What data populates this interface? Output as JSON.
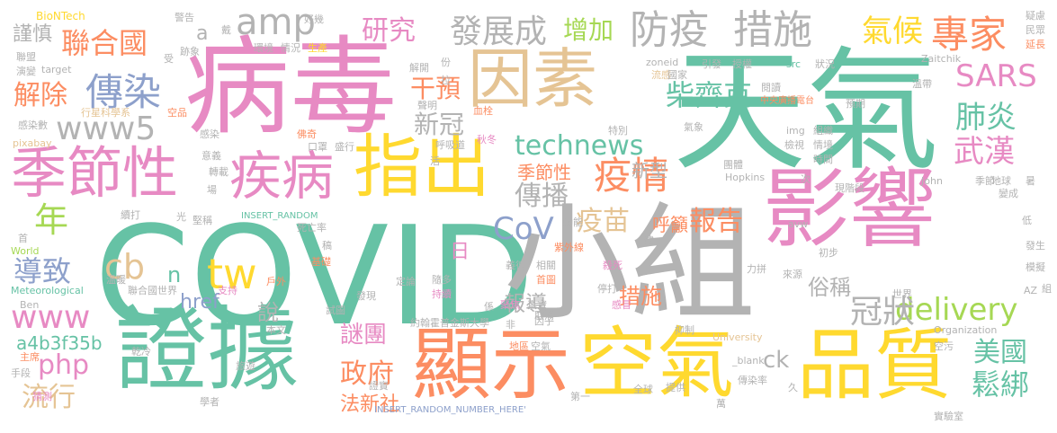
{
  "palette": {
    "green": "#66c2a5",
    "orange": "#fc8d62",
    "blue": "#8da0cb",
    "pink": "#e78ac3",
    "lime": "#a6d854",
    "yellow": "#ffd92f",
    "tan": "#e5c494",
    "gray": "#b3b3b3"
  },
  "words": [
    {
      "text": "COVID",
      "color": "green"
    },
    {
      "text": "天氣",
      "color": "green"
    },
    {
      "text": "病毒",
      "color": "pink"
    },
    {
      "text": "小組",
      "color": "gray"
    },
    {
      "text": "影響",
      "color": "pink"
    },
    {
      "text": "證據",
      "color": "green"
    },
    {
      "text": "顯示",
      "color": "orange"
    },
    {
      "text": "空氣",
      "color": "yellow"
    },
    {
      "text": "品質",
      "color": "yellow"
    },
    {
      "text": "因素",
      "color": "tan"
    },
    {
      "text": "指出",
      "color": "yellow"
    },
    {
      "text": "季節性",
      "color": "pink"
    },
    {
      "text": "疾病",
      "color": "pink"
    },
    {
      "text": "防疫",
      "color": "gray"
    },
    {
      "text": "措施",
      "color": "gray"
    },
    {
      "text": "專家",
      "color": "orange"
    },
    {
      "text": "發展成",
      "color": "gray"
    },
    {
      "text": "疫情",
      "color": "orange"
    },
    {
      "text": "www5",
      "color": "gray"
    },
    {
      "text": "傳染",
      "color": "blue"
    },
    {
      "text": "technews",
      "color": "green"
    },
    {
      "text": "聯合國",
      "color": "orange"
    },
    {
      "text": "研究",
      "color": "pink"
    },
    {
      "text": "amp",
      "color": "gray"
    },
    {
      "text": "氣候",
      "color": "yellow"
    },
    {
      "text": "SARS",
      "color": "pink"
    },
    {
      "text": "肺炎",
      "color": "green"
    },
    {
      "text": "武漢",
      "color": "pink"
    },
    {
      "text": "柴齊克",
      "color": "green"
    },
    {
      "text": "干預",
      "color": "orange"
    },
    {
      "text": "解除",
      "color": "orange"
    },
    {
      "text": "增加",
      "color": "lime"
    },
    {
      "text": "新冠",
      "color": "gray"
    },
    {
      "text": "傳播",
      "color": "gray"
    },
    {
      "text": "報告",
      "color": "orange"
    },
    {
      "text": "季節性",
      "color": "orange"
    },
    {
      "text": "CoV",
      "color": "blue"
    },
    {
      "text": "tw",
      "color": "yellow"
    },
    {
      "text": "cb",
      "color": "tan"
    },
    {
      "text": "年",
      "color": "lime"
    },
    {
      "text": "導致",
      "color": "blue"
    },
    {
      "text": "www",
      "color": "pink"
    },
    {
      "text": "php",
      "color": "pink"
    },
    {
      "text": "流行",
      "color": "tan"
    },
    {
      "text": "delivery",
      "color": "lime"
    },
    {
      "text": "冠狀",
      "color": "gray"
    },
    {
      "text": "美國",
      "color": "green"
    },
    {
      "text": "鬆綁",
      "color": "green"
    },
    {
      "text": "政府",
      "color": "orange"
    },
    {
      "text": "謎團",
      "color": "pink"
    },
    {
      "text": "a4b3f35b",
      "color": "green"
    },
    {
      "text": "疫苗",
      "color": "tan"
    },
    {
      "text": "報導",
      "color": "gray"
    },
    {
      "text": "措施",
      "color": "orange"
    },
    {
      "text": "俗稱",
      "color": "gray"
    },
    {
      "text": "法新社",
      "color": "orange"
    },
    {
      "text": "ck",
      "color": "gray"
    },
    {
      "text": "href",
      "color": "blue"
    },
    {
      "text": "n",
      "color": "green"
    },
    {
      "text": "說",
      "color": "gray"
    },
    {
      "text": "日",
      "color": "pink"
    },
    {
      "text": "新型",
      "color": "gray"
    },
    {
      "text": "呼籲",
      "color": "orange"
    },
    {
      "text": "謹慎",
      "color": "gray"
    },
    {
      "text": "a",
      "color": "gray"
    },
    {
      "text": "BioNTech",
      "color": "yellow"
    },
    {
      "text": "警告",
      "color": "gray"
    },
    {
      "text": "好幾",
      "color": "gray"
    },
    {
      "text": "疑慮",
      "color": "gray"
    },
    {
      "text": "民眾",
      "color": "gray"
    },
    {
      "text": "延長",
      "color": "orange"
    },
    {
      "text": "聯盟",
      "color": "gray"
    },
    {
      "text": "跡象",
      "color": "gray"
    },
    {
      "text": "環境",
      "color": "gray"
    },
    {
      "text": "情況",
      "color": "gray"
    },
    {
      "text": "生產",
      "color": "yellow"
    },
    {
      "text": "演變",
      "color": "gray"
    },
    {
      "text": "target",
      "color": "gray"
    },
    {
      "text": "解開",
      "color": "gray"
    },
    {
      "text": "份",
      "color": "gray"
    },
    {
      "text": "拉",
      "color": "gray"
    },
    {
      "text": "zoneid",
      "color": "gray"
    },
    {
      "text": "引發",
      "color": "gray"
    },
    {
      "text": "授權",
      "color": "gray"
    },
    {
      "text": "src",
      "color": "green"
    },
    {
      "text": "狀況",
      "color": "gray"
    },
    {
      "text": "Zaitchik",
      "color": "gray"
    },
    {
      "text": "溫帶",
      "color": "gray"
    },
    {
      "text": "行星科學系",
      "color": "tan"
    },
    {
      "text": "空品",
      "color": "orange"
    },
    {
      "text": "聲明",
      "color": "gray"
    },
    {
      "text": "血栓",
      "color": "orange"
    },
    {
      "text": "流感",
      "color": "tan"
    },
    {
      "text": "國家",
      "color": "gray"
    },
    {
      "text": "閱讀",
      "color": "gray"
    },
    {
      "text": "中央廣播電台",
      "color": "orange"
    },
    {
      "text": "預期",
      "color": "gray"
    },
    {
      "text": "感染數",
      "color": "gray"
    },
    {
      "text": "感染",
      "color": "gray"
    },
    {
      "text": "佛奇",
      "color": "orange"
    },
    {
      "text": "口罩",
      "color": "gray"
    },
    {
      "text": "盛行",
      "color": "gray"
    },
    {
      "text": "呼吸道",
      "color": "gray"
    },
    {
      "text": "秋冬",
      "color": "pink"
    },
    {
      "text": "特別",
      "color": "gray"
    },
    {
      "text": "氣象",
      "color": "gray"
    },
    {
      "text": "img",
      "color": "gray"
    },
    {
      "text": "組織",
      "color": "gray"
    },
    {
      "text": "檢視",
      "color": "gray"
    },
    {
      "text": "情境",
      "color": "gray"
    },
    {
      "text": "時間",
      "color": "gray"
    },
    {
      "text": "pixabay",
      "color": "tan"
    },
    {
      "text": "意義",
      "color": "gray"
    },
    {
      "text": "轉載",
      "color": "gray"
    },
    {
      "text": "活",
      "color": "gray"
    },
    {
      "text": "團體",
      "color": "gray"
    },
    {
      "text": "Hopkins",
      "color": "gray"
    },
    {
      "text": "次",
      "color": "gray"
    },
    {
      "text": "John",
      "color": "gray"
    },
    {
      "text": "季節",
      "color": "gray"
    },
    {
      "text": "地球",
      "color": "gray"
    },
    {
      "text": "場",
      "color": "gray"
    },
    {
      "text": "現階段",
      "color": "gray"
    },
    {
      "text": "變成",
      "color": "gray"
    },
    {
      "text": "續打",
      "color": "gray"
    },
    {
      "text": "光",
      "color": "gray"
    },
    {
      "text": "堅稱",
      "color": "gray"
    },
    {
      "text": "INSERT_RANDOM",
      "color": "green"
    },
    {
      "text": "動能",
      "color": "gray"
    },
    {
      "text": "建",
      "color": "gray"
    },
    {
      "text": "avw",
      "color": "gray"
    },
    {
      "text": "低",
      "color": "gray"
    },
    {
      "text": "首",
      "color": "gray"
    },
    {
      "text": "死亡率",
      "color": "gray"
    },
    {
      "text": "紫外線",
      "color": "orange"
    },
    {
      "text": "World",
      "color": "lime"
    },
    {
      "text": "稿",
      "color": "gray"
    },
    {
      "text": "初步",
      "color": "gray"
    },
    {
      "text": "發生",
      "color": "gray"
    },
    {
      "text": "Meteorological",
      "color": "green"
    },
    {
      "text": "基礎",
      "color": "orange"
    },
    {
      "text": "首圖",
      "color": "orange"
    },
    {
      "text": "相關",
      "color": "gray"
    },
    {
      "text": "義德",
      "color": "gray"
    },
    {
      "text": "殺死",
      "color": "pink"
    },
    {
      "text": "力拼",
      "color": "gray"
    },
    {
      "text": "模擬",
      "color": "gray"
    },
    {
      "text": "Ben",
      "color": "gray"
    },
    {
      "text": "溫暖",
      "color": "gray"
    },
    {
      "text": "聯合國世界",
      "color": "gray"
    },
    {
      "text": "支持",
      "color": "pink"
    },
    {
      "text": "戶外",
      "color": "orange"
    },
    {
      "text": "隨多",
      "color": "gray"
    },
    {
      "text": "來源",
      "color": "gray"
    },
    {
      "text": "AZ",
      "color": "gray"
    },
    {
      "text": "發現",
      "color": "gray"
    },
    {
      "text": "定論",
      "color": "gray"
    },
    {
      "text": "持續",
      "color": "pink"
    },
    {
      "text": "聚焦",
      "color": "pink"
    },
    {
      "text": "真實",
      "color": "gray"
    },
    {
      "text": "停打",
      "color": "gray"
    },
    {
      "text": "感冒",
      "color": "pink"
    },
    {
      "text": "世界",
      "color": "gray"
    },
    {
      "text": "Organization",
      "color": "gray"
    },
    {
      "text": "試圖",
      "color": "gray"
    },
    {
      "text": "約翰霍普金斯大學",
      "color": "gray"
    },
    {
      "text": "非",
      "color": "gray"
    },
    {
      "text": "取消",
      "color": "gray"
    },
    {
      "text": "因子",
      "color": "gray"
    },
    {
      "text": "抑制",
      "color": "gray"
    },
    {
      "text": "本文",
      "color": "gray"
    },
    {
      "text": "University",
      "color": "tan"
    },
    {
      "text": "主席",
      "color": "orange"
    },
    {
      "text": "乾冷",
      "color": "gray"
    },
    {
      "text": "地區",
      "color": "orange"
    },
    {
      "text": "空氣",
      "color": "gray"
    },
    {
      "text": "_blank'",
      "color": "gray"
    },
    {
      "text": "空污",
      "color": "gray"
    },
    {
      "text": "手段",
      "color": "gray"
    },
    {
      "text": "旅遊",
      "color": "gray"
    },
    {
      "text": "證實",
      "color": "gray"
    },
    {
      "text": "第一",
      "color": "gray"
    },
    {
      "text": "全球",
      "color": "gray"
    },
    {
      "text": "提供",
      "color": "gray"
    },
    {
      "text": "傳染率",
      "color": "gray"
    },
    {
      "text": "久",
      "color": "gray"
    },
    {
      "text": "猜測",
      "color": "pink"
    },
    {
      "text": "學者",
      "color": "gray"
    },
    {
      "text": "INSERT_RANDOM_NUMBER_HERE'",
      "color": "blue"
    },
    {
      "text": "萬",
      "color": "gray"
    },
    {
      "text": "實驗室",
      "color": "gray"
    },
    {
      "text": "受",
      "color": "gray"
    },
    {
      "text": "戴",
      "color": "gray"
    },
    {
      "text": "係",
      "color": "gray"
    },
    {
      "text": "暑",
      "color": "gray"
    },
    {
      "text": "組",
      "color": "gray"
    }
  ]
}
